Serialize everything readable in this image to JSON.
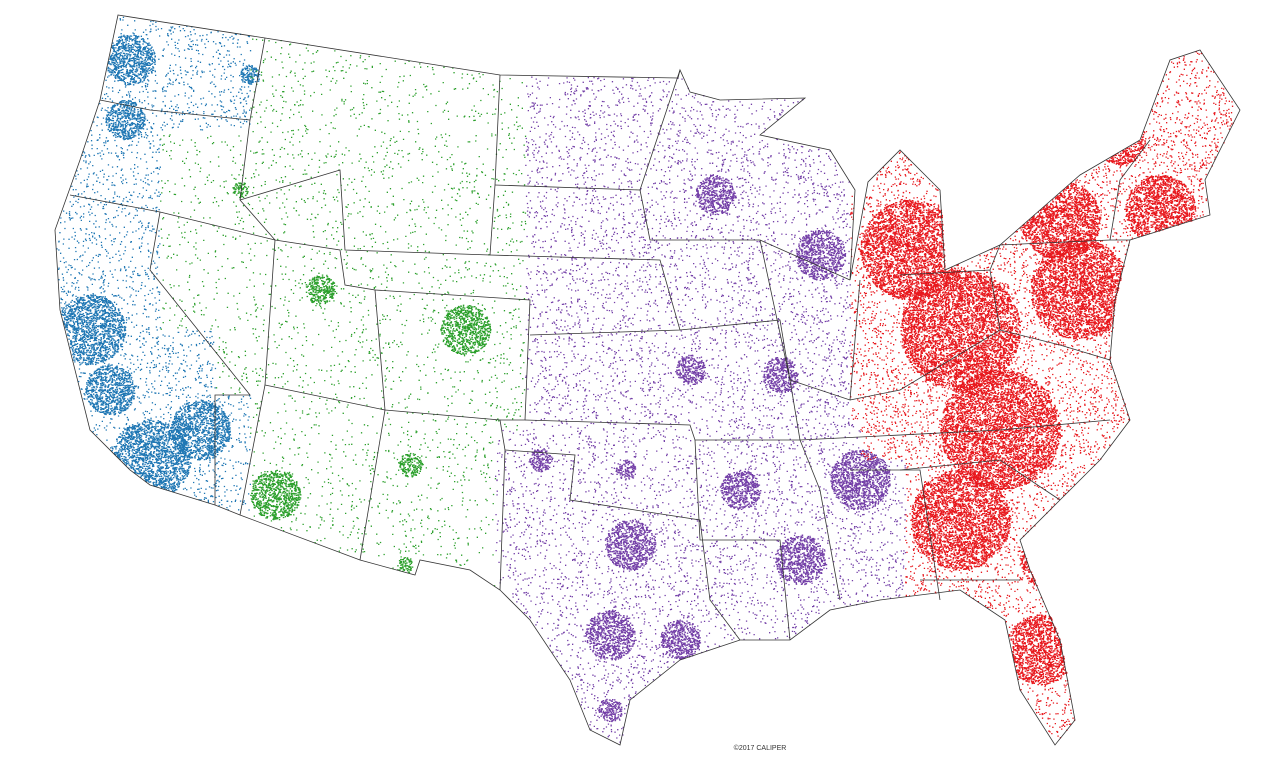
{
  "map": {
    "credit": "©2017 CALIPER"
  }
}
